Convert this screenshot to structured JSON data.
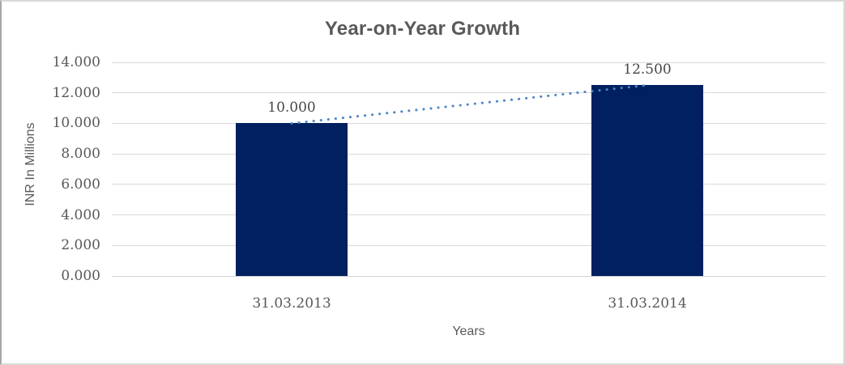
{
  "window": {
    "background": "#ffffff",
    "border_color": "#d9d9d9"
  },
  "chart_data": {
    "type": "bar",
    "title": "Year-on-Year Growth",
    "xlabel": "Years",
    "ylabel": "INR In Millions",
    "categories": [
      "31.03.2013",
      "31.03.2014"
    ],
    "values": [
      10.0,
      12.5
    ],
    "data_labels": [
      "10.000",
      "12.500"
    ],
    "ylim": [
      0,
      14
    ],
    "ytick_step": 2,
    "ytick_labels": [
      "0.000",
      "2.000",
      "4.000",
      "6.000",
      "8.000",
      "10.000",
      "12.000",
      "14.000"
    ],
    "grid": true,
    "legend": "none",
    "bar_color": "#002060",
    "gridline_color": "#d9d9d9",
    "text_color": "#595959",
    "trendline": {
      "style": "dotted",
      "color": "#4a86c8",
      "from_value": 10.0,
      "to_value": 12.5
    }
  }
}
